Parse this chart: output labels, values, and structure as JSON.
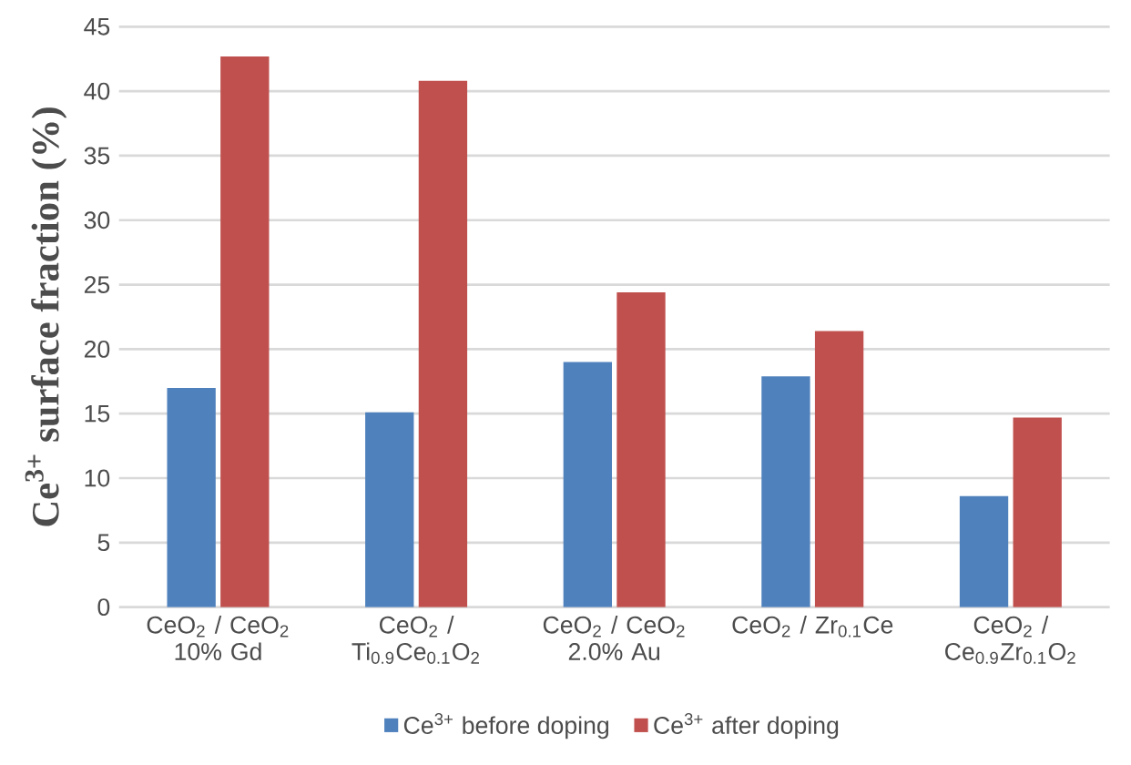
{
  "chart_data": {
    "type": "bar",
    "ylabel": "Ce$^{3+}$ surface fraction (%)",
    "categories": [
      "CeO$_{2}$ / CeO$_{2}$ 10% Gd",
      "CeO$_{2}$ / Ti$_{0.9}$Ce$_{0.1}$O$_{2}$",
      "CeO$_{2}$ / CeO$_{2}$ 2.0% Au",
      "CeO$_{2}$ / Zr$_{0.1}$Ce",
      "CeO$_{2}$ / Ce$_{0.9}$Zr$_{0.1}$O$_{2}$"
    ],
    "series": [
      {
        "name": "Ce$^{3+}$ before doping",
        "color": "#4f81bd",
        "values": [
          17.0,
          15.1,
          19.0,
          17.9,
          8.6
        ]
      },
      {
        "name": "Ce$^{3+}$ after doping",
        "color": "#c0504d",
        "values": [
          42.7,
          40.8,
          24.4,
          21.4,
          14.7
        ]
      }
    ],
    "ylim": [
      0,
      45
    ],
    "yticks": [
      0,
      5,
      10,
      15,
      20,
      25,
      30,
      35,
      40,
      45
    ],
    "grid": "y",
    "legend": "bottom"
  }
}
